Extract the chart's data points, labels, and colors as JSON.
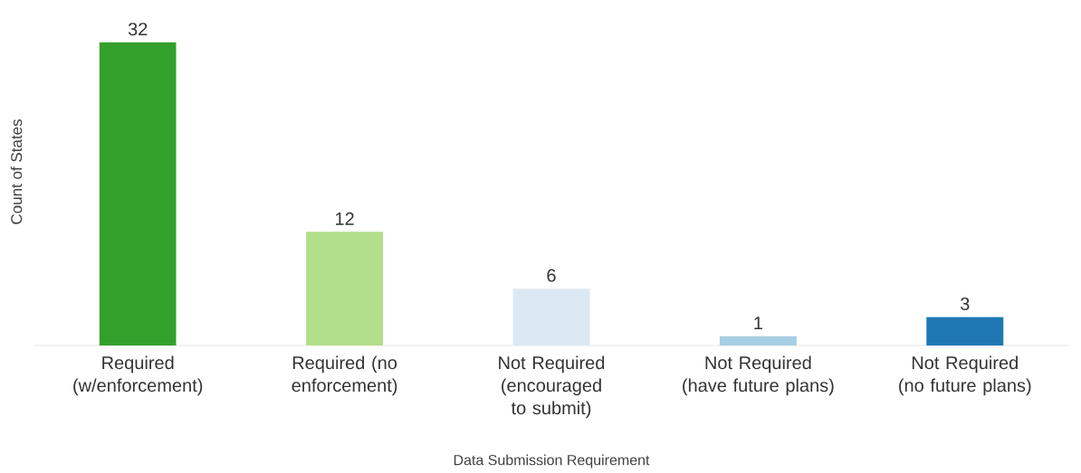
{
  "chart_data": {
    "type": "bar",
    "xlabel": "Data Submission Requirement",
    "ylabel": "Count of States",
    "categories": [
      "Required (w/enforcement)",
      "Required (no enforcement)",
      "Not Required (encouraged to submit)",
      "Not Required (have future plans)",
      "Not Required (no future plans)"
    ],
    "values": [
      32,
      12,
      6,
      1,
      3
    ],
    "colors": [
      "#33a02c",
      "#b2df8a",
      "#dce9f5",
      "#a6cee3",
      "#1f78b4"
    ],
    "data_labels": true
  }
}
